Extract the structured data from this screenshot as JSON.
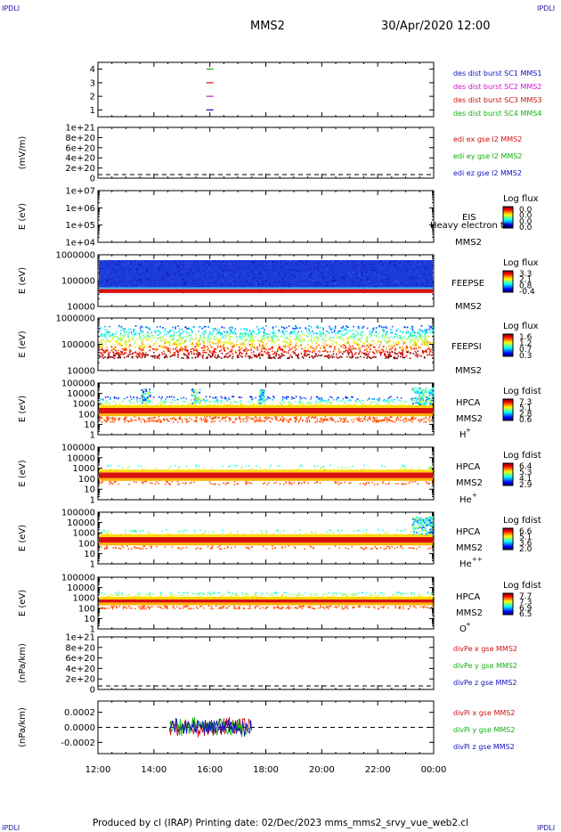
{
  "corner_labels": {
    "tl": "IPDLI",
    "tr": "IPDLI",
    "bl": "IPDLI",
    "br": "IPDLI"
  },
  "header": {
    "mission": "MMS2",
    "datetime": "30/Apr/2020 12:00"
  },
  "footer": {
    "text": "Produced by cl (IRAP)   Printing date: 02/Dec/2023   mms_mms2_srvy_vue_web2.cl"
  },
  "colors": {
    "blue": "#1010c0",
    "red": "#d01010",
    "green": "#10b010",
    "magenta": "#d010d0",
    "frame": "#000000"
  },
  "chart_data": [
    {
      "type": "scatter",
      "id": "burst",
      "ylabel": "",
      "yticks": [
        "1",
        "2",
        "3",
        "4"
      ],
      "ylim": [
        0.5,
        4.5
      ],
      "legend": [
        {
          "name": "des dist burst SC1 MMS1",
          "color": "#1010c0"
        },
        {
          "name": "des dist burst SC2 MMS2",
          "color": "#d010d0"
        },
        {
          "name": "des dist burst SC3 MMS3",
          "color": "#d01010"
        },
        {
          "name": "des dist burst SC4 MMS4",
          "color": "#10b010"
        }
      ],
      "points": [
        {
          "x": "16:00",
          "y": 4,
          "color": "#10b010"
        },
        {
          "x": "16:00",
          "y": 3,
          "color": "#d01010"
        },
        {
          "x": "16:00",
          "y": 2,
          "color": "#d010d0"
        },
        {
          "x": "16:00",
          "y": 1,
          "color": "#1010c0"
        }
      ]
    },
    {
      "type": "line",
      "id": "edi",
      "ylabel": "(mV/m)",
      "yticks": [
        "0",
        "2e+20",
        "4e+20",
        "6e+20",
        "8e+20",
        "1e+21"
      ],
      "ylim": [
        0,
        1e+21
      ],
      "legend": [
        {
          "name": "edi ex gse l2 MMS2",
          "color": "#d01010"
        },
        {
          "name": "edi ey gse l2 MMS2",
          "color": "#10b010"
        },
        {
          "name": "edi ez gse l2 MMS2",
          "color": "#1010c0"
        }
      ]
    },
    {
      "type": "heatmap",
      "id": "eis",
      "ylabel": "E (eV)",
      "yticks": [
        "1e+04",
        "1e+05",
        "1e+06",
        "1e+07"
      ],
      "ylim": [
        10000.0,
        10000000.0
      ],
      "instrument": "EIS",
      "sc": "MMS2",
      "species": "Heavy electron to",
      "cbar_title": "Log flux",
      "cbar_ticks": [
        "0.0",
        "0.0",
        "0.0",
        "0.0"
      ]
    },
    {
      "type": "heatmap",
      "id": "feepse",
      "ylabel": "E (eV)",
      "yticks": [
        "10000",
        "100000",
        "1000000"
      ],
      "ylim": [
        10000.0,
        1000000.0
      ],
      "instrument": "FEEPSE",
      "sc": "MMS2",
      "cbar_title": "Log flux",
      "cbar_ticks": [
        "3.3",
        "2.1",
        "0.8",
        "-0.4"
      ]
    },
    {
      "type": "heatmap",
      "id": "feepsi",
      "ylabel": "E (eV)",
      "yticks": [
        "10000",
        "100000",
        "1000000"
      ],
      "ylim": [
        10000.0,
        1000000.0
      ],
      "instrument": "FEEPSI",
      "sc": "MMS2",
      "cbar_title": "Log flux",
      "cbar_ticks": [
        "1.6",
        "1.2",
        "0.7",
        "0.3"
      ]
    },
    {
      "type": "heatmap",
      "id": "hpca_h",
      "ylabel": "E (eV)",
      "yticks": [
        "1",
        "10",
        "100",
        "1000",
        "10000",
        "100000"
      ],
      "ylim": [
        1,
        100000.0
      ],
      "instrument": "HPCA",
      "sc": "MMS2",
      "species": "H",
      "species_sup": "+",
      "cbar_title": "Log fdist",
      "cbar_ticks": [
        "7.3",
        "5.1",
        "2.8",
        "0.6"
      ]
    },
    {
      "type": "heatmap",
      "id": "hpca_he",
      "ylabel": "E (eV)",
      "yticks": [
        "1",
        "10",
        "100",
        "1000",
        "10000",
        "100000"
      ],
      "ylim": [
        1,
        100000.0
      ],
      "instrument": "HPCA",
      "sc": "MMS2",
      "species": "He",
      "species_sup": "+",
      "cbar_title": "Log fdist",
      "cbar_ticks": [
        "6.4",
        "5.3",
        "4.1",
        "2.9"
      ]
    },
    {
      "type": "heatmap",
      "id": "hpca_he2",
      "ylabel": "E (eV)",
      "yticks": [
        "1",
        "10",
        "100",
        "1000",
        "10000",
        "100000"
      ],
      "ylim": [
        1,
        100000.0
      ],
      "instrument": "HPCA",
      "sc": "MMS2",
      "species": "He",
      "species_sup": "++",
      "cbar_title": "Log fdist",
      "cbar_ticks": [
        "6.6",
        "5.1",
        "3.6",
        "2.0"
      ]
    },
    {
      "type": "heatmap",
      "id": "hpca_o",
      "ylabel": "E (eV)",
      "yticks": [
        "1",
        "10",
        "100",
        "1000",
        "10000",
        "100000"
      ],
      "ylim": [
        1,
        100000.0
      ],
      "instrument": "HPCA",
      "sc": "MMS2",
      "species": "O",
      "species_sup": "+",
      "cbar_title": "Log fdist",
      "cbar_ticks": [
        "7.7",
        "7.3",
        "6.9",
        "6.5"
      ]
    },
    {
      "type": "line",
      "id": "divpe",
      "ylabel": "(nPa/km)",
      "yticks": [
        "0",
        "2e+20",
        "4e+20",
        "6e+20",
        "8e+20",
        "1e+21"
      ],
      "ylim": [
        0,
        1e+21
      ],
      "legend": [
        {
          "name": "divPe x gse MMS2",
          "color": "#d01010"
        },
        {
          "name": "divPe y gse MMS2",
          "color": "#10b010"
        },
        {
          "name": "divPe z gse MMS2",
          "color": "#1010c0"
        }
      ]
    },
    {
      "type": "line",
      "id": "divpi",
      "ylabel": "(nPa/km)",
      "yticks": [
        "-0.0002",
        "0.0000",
        "0.0002"
      ],
      "ylim": [
        -0.00035,
        0.00035
      ],
      "legend": [
        {
          "name": "divPi x gse MMS2",
          "color": "#d01010"
        },
        {
          "name": "divPi y gse MMS2",
          "color": "#10b010"
        },
        {
          "name": "divPi z gse MMS2",
          "color": "#1010c0"
        }
      ],
      "x_range": [
        "14:30",
        "17:30"
      ]
    }
  ],
  "x_axis": {
    "ticks": [
      "12:00",
      "14:00",
      "16:00",
      "18:00",
      "20:00",
      "22:00",
      "00:00"
    ],
    "range": [
      "12:00",
      "00:00"
    ]
  }
}
